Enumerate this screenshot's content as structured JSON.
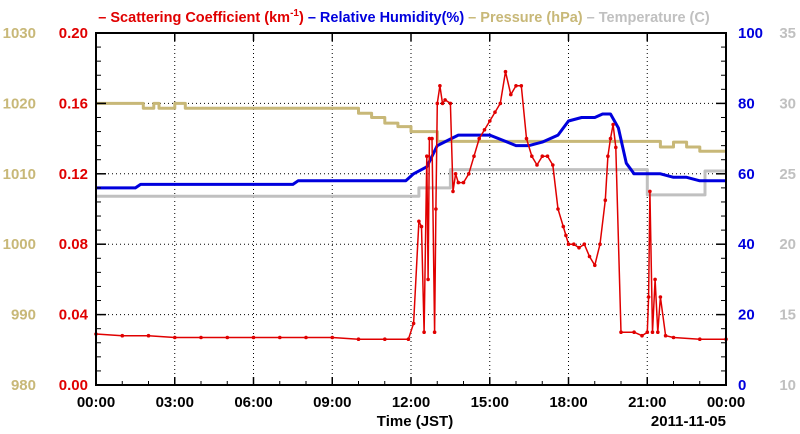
{
  "chart_data": {
    "type": "line",
    "legend": [
      {
        "prefix": "– ",
        "text": "Scattering Coefficient (km",
        "sup": "-1",
        "suffix": ")",
        "color": "#e00000"
      },
      {
        "prefix": " – ",
        "text": "Relative Humidity(%)",
        "color": "#0000dd"
      },
      {
        "prefix": " – ",
        "text": "Pressure (hPa)",
        "color": "#c8b878"
      },
      {
        "prefix": " – ",
        "text": "Temperature (C)",
        "color": "#c0c0c0"
      }
    ],
    "xlabel": "Time (JST)",
    "date_label": "2011-11-05",
    "x_range_hours": [
      0,
      24
    ],
    "x_ticks": [
      "00:00",
      "03:00",
      "06:00",
      "09:00",
      "12:00",
      "15:00",
      "18:00",
      "21:00",
      "00:00"
    ],
    "grid": true,
    "axes": {
      "pressure": {
        "side": "left-outer",
        "range": [
          980,
          1030
        ],
        "ticks": [
          "980",
          "990",
          "1000",
          "1010",
          "1020",
          "1030"
        ],
        "color": "#c8b878"
      },
      "scattering": {
        "side": "left-inner",
        "range": [
          0,
          0.2
        ],
        "ticks": [
          "0.00",
          "0.04",
          "0.08",
          "0.12",
          "0.16",
          "0.20"
        ],
        "color": "#e00000"
      },
      "humidity": {
        "side": "right-inner",
        "range": [
          0,
          100
        ],
        "ticks": [
          "0",
          "20",
          "40",
          "60",
          "80",
          "100"
        ],
        "color": "#0000dd"
      },
      "temperature": {
        "side": "right-outer",
        "range": [
          10,
          35
        ],
        "ticks": [
          "10",
          "15",
          "20",
          "25",
          "30",
          "35"
        ],
        "color": "#c0c0c0"
      }
    },
    "series": [
      {
        "name": "Temperature (C)",
        "axis": "temperature",
        "step": true,
        "color": "#c0c0c0",
        "x": [
          0,
          12.2,
          12.3,
          13.3,
          13.5,
          20.8,
          21.0,
          23.0,
          23.2,
          24
        ],
        "y": [
          23.4,
          23.4,
          24.0,
          24.0,
          25.3,
          25.3,
          23.5,
          23.5,
          25.2,
          25.2
        ]
      },
      {
        "name": "Pressure (hPa)",
        "axis": "pressure",
        "step": true,
        "color": "#c8b878",
        "x": [
          0,
          1.8,
          2.2,
          2.4,
          2.8,
          3.0,
          3.4,
          10.0,
          10.5,
          11.0,
          11.5,
          12.0,
          13.0,
          21.0,
          21.5,
          22.0,
          22.5,
          23.0,
          24
        ],
        "y": [
          1020,
          1019.3,
          1020,
          1019.3,
          1019.3,
          1020,
          1019.3,
          1018.6,
          1018.0,
          1017.2,
          1016.7,
          1016.0,
          1014.6,
          1014.6,
          1013.8,
          1014.5,
          1013.8,
          1013.2,
          1013.2
        ]
      },
      {
        "name": "Relative Humidity(%)",
        "axis": "humidity",
        "step": false,
        "color": "#0000dd",
        "x": [
          0,
          1.5,
          1.7,
          7.5,
          7.7,
          9.8,
          10.0,
          11.8,
          12.1,
          12.6,
          13.0,
          13.8,
          14.5,
          15.0,
          16.0,
          16.5,
          17.0,
          17.6,
          18.0,
          18.5,
          19.0,
          19.3,
          19.6,
          19.9,
          20.2,
          20.5,
          21.0,
          21.5,
          22.0,
          22.5,
          23.0,
          24
        ],
        "y": [
          56,
          56,
          57,
          57,
          58,
          58,
          58,
          58,
          60,
          62,
          68,
          71,
          71,
          71,
          68,
          68,
          69,
          71,
          75,
          76,
          76,
          77,
          77,
          73,
          63,
          60,
          60,
          60,
          59,
          59,
          58,
          58
        ]
      },
      {
        "name": "Scattering Coefficient (km-1)",
        "axis": "scattering",
        "step": false,
        "markers": true,
        "color": "#e00000",
        "x": [
          0,
          1,
          2,
          3,
          4,
          5,
          6,
          7,
          8,
          9,
          10,
          11,
          11.9,
          12.1,
          12.3,
          12.4,
          12.5,
          12.6,
          12.65,
          12.7,
          12.8,
          12.9,
          12.95,
          13.0,
          13.1,
          13.2,
          13.3,
          13.5,
          13.6,
          13.7,
          13.8,
          14.0,
          14.2,
          14.4,
          14.6,
          14.8,
          15.0,
          15.2,
          15.4,
          15.6,
          15.8,
          16.0,
          16.2,
          16.4,
          16.6,
          16.8,
          17.0,
          17.2,
          17.4,
          17.6,
          17.8,
          17.9,
          18.0,
          18.2,
          18.4,
          18.6,
          18.8,
          19.0,
          19.2,
          19.4,
          19.5,
          19.6,
          19.7,
          19.8,
          20.0,
          20.5,
          20.8,
          21.0,
          21.05,
          21.1,
          21.2,
          21.3,
          21.4,
          21.5,
          21.7,
          22.0,
          23.0,
          24.0
        ],
        "y": [
          0.029,
          0.028,
          0.028,
          0.027,
          0.027,
          0.027,
          0.027,
          0.027,
          0.027,
          0.027,
          0.026,
          0.026,
          0.026,
          0.035,
          0.093,
          0.09,
          0.03,
          0.13,
          0.06,
          0.14,
          0.14,
          0.03,
          0.1,
          0.16,
          0.17,
          0.16,
          0.162,
          0.16,
          0.11,
          0.12,
          0.115,
          0.115,
          0.12,
          0.13,
          0.14,
          0.145,
          0.15,
          0.155,
          0.16,
          0.178,
          0.165,
          0.17,
          0.17,
          0.14,
          0.13,
          0.125,
          0.13,
          0.13,
          0.125,
          0.1,
          0.09,
          0.085,
          0.08,
          0.08,
          0.078,
          0.08,
          0.073,
          0.068,
          0.08,
          0.105,
          0.13,
          0.14,
          0.148,
          0.135,
          0.03,
          0.03,
          0.028,
          0.03,
          0.05,
          0.11,
          0.03,
          0.06,
          0.03,
          0.05,
          0.028,
          0.027,
          0.026,
          0.026
        ]
      }
    ]
  }
}
